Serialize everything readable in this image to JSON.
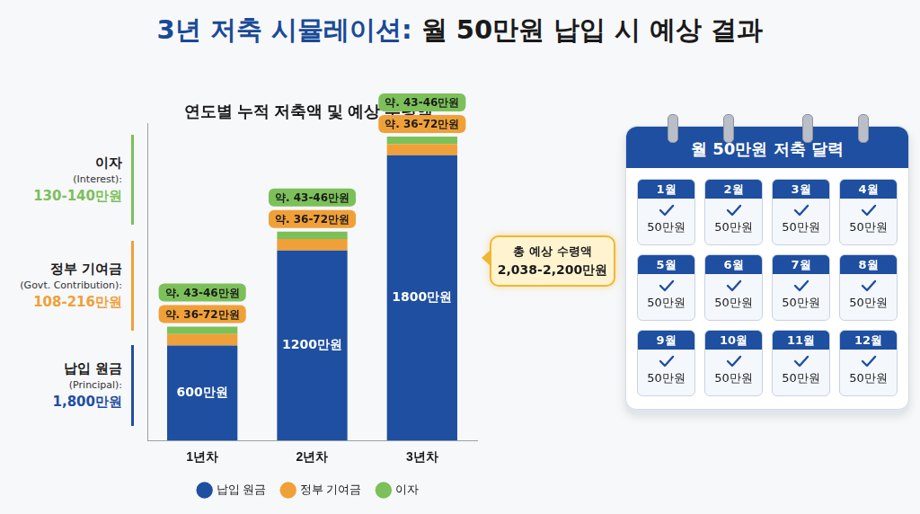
{
  "header": {
    "title_lead": "3년 저축 시뮬레이션:",
    "title_rest": "월 50만원 납입 시 예상 결과"
  },
  "chart_data": {
    "type": "bar",
    "title": "연도별 누적 저축액 및 예상 수령액",
    "categories": [
      "1년차",
      "2년차",
      "3년차"
    ],
    "series": [
      {
        "name": "납입 원금",
        "color": "#1f4fa0",
        "values": [
          600,
          1200,
          1800
        ],
        "value_labels": [
          "600만원",
          "1200만원",
          "1800만원"
        ]
      },
      {
        "name": "정부 기여금",
        "color": "#f0a038",
        "values": [
          72,
          72,
          72
        ],
        "value_labels": [
          "약. 36-72만원",
          "약. 36-72만원",
          "약. 36-72만원"
        ]
      },
      {
        "name": "이자",
        "color": "#7cc05a",
        "values": [
          46,
          46,
          46
        ],
        "value_labels": [
          "약. 43-46만원",
          "약. 43-46만원",
          "약. 43-46만원"
        ]
      }
    ],
    "ylim": [
      0,
      2000
    ],
    "stacked": true,
    "data_labels": true,
    "legend": "bottom",
    "tick_labels": "x",
    "grid": false
  },
  "side_labels": [
    {
      "name": "이자",
      "name_en": "(Interest):",
      "total": "130-140만원"
    },
    {
      "name": "정부 기여금",
      "name_en": "(Govt. Contribution):",
      "total": "108-216만원"
    },
    {
      "name": "납입 원금",
      "name_en": "(Principal):",
      "total": "1,800만원"
    }
  ],
  "callout": {
    "label": "총 예상 수령액",
    "value": "2,038-2,200만원"
  },
  "calendar": {
    "title": "월 50만원 저축 달력",
    "months": [
      {
        "label": "1월",
        "amount": "50만원"
      },
      {
        "label": "2월",
        "amount": "50만원"
      },
      {
        "label": "3월",
        "amount": "50만원"
      },
      {
        "label": "4월",
        "amount": "50만원"
      },
      {
        "label": "5월",
        "amount": "50만원"
      },
      {
        "label": "6월",
        "amount": "50만원"
      },
      {
        "label": "7월",
        "amount": "50만원"
      },
      {
        "label": "8월",
        "amount": "50만원"
      },
      {
        "label": "9월",
        "amount": "50만원"
      },
      {
        "label": "10월",
        "amount": "50만원"
      },
      {
        "label": "11월",
        "amount": "50만원"
      },
      {
        "label": "12월",
        "amount": "50만원"
      }
    ]
  }
}
